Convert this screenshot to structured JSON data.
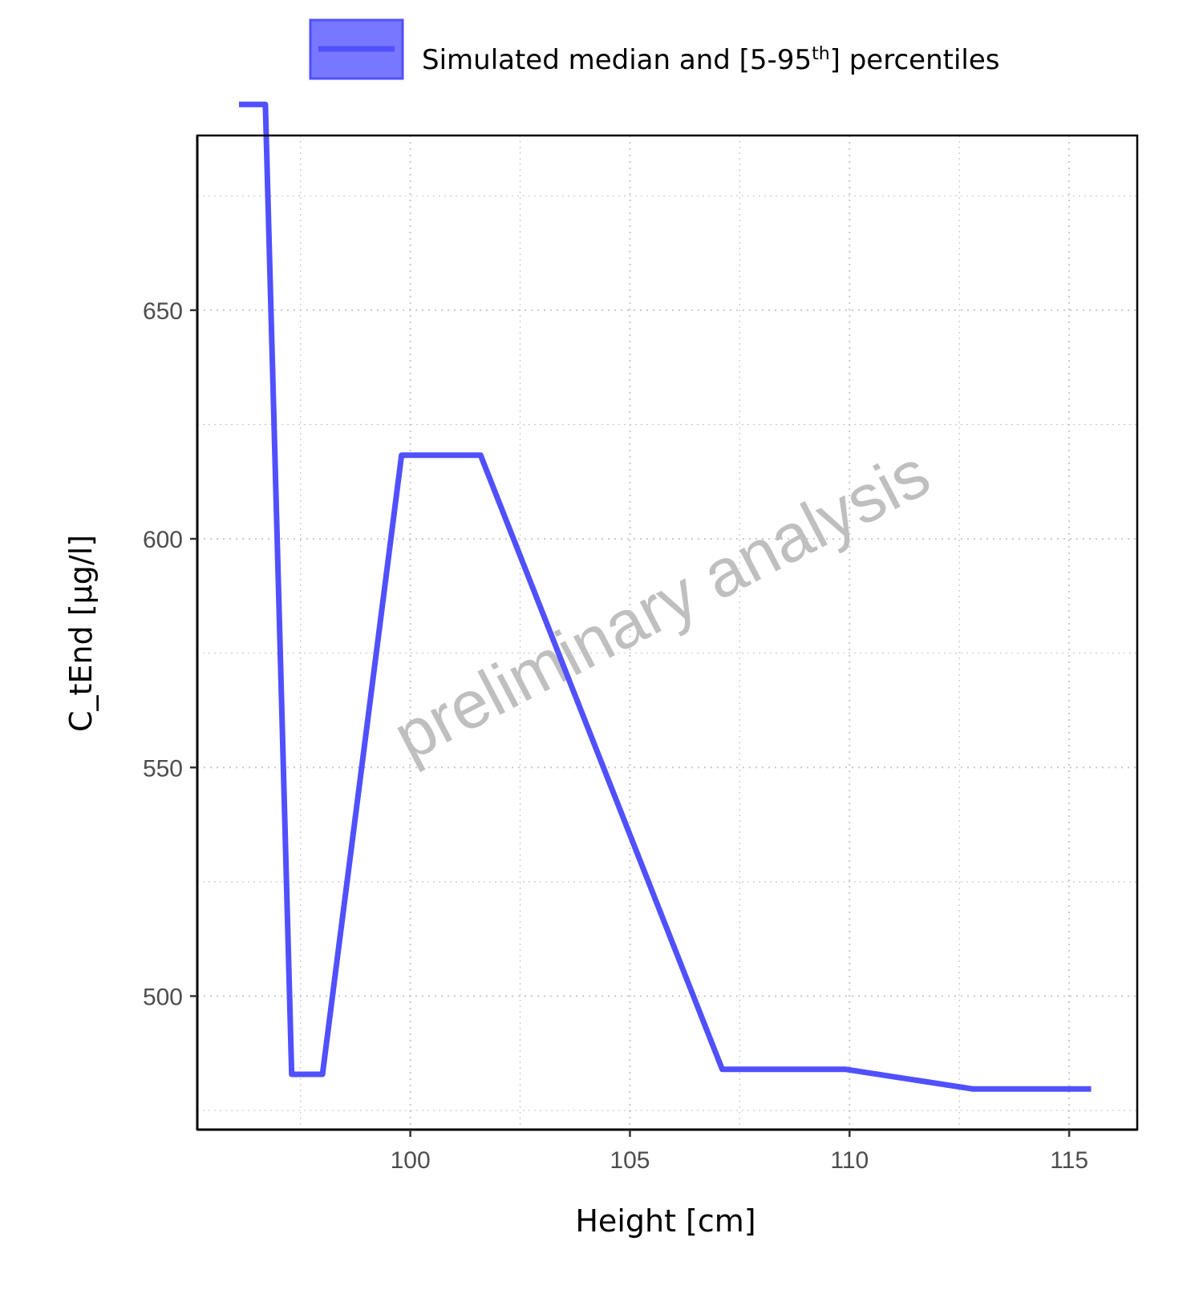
{
  "chart_data": {
    "type": "line",
    "xlabel": "Height [cm]",
    "ylabel": "C_tEnd [µg/l]",
    "xlim": [
      95.15,
      116.55
    ],
    "ylim": [
      470.8,
      688.2
    ],
    "xticks": [
      100,
      105,
      110,
      115
    ],
    "yticks": [
      500,
      550,
      600,
      650
    ],
    "grid": true,
    "legend_position": "top",
    "legend": {
      "label_main": "Simulated median and [5-95",
      "label_sup": "th",
      "label_end": "] percentiles"
    },
    "watermark": "preliminary analysis",
    "colors": {
      "line": "#5050FF",
      "legend_fill": "#7777FF",
      "grid": "#c8c8c8"
    },
    "series": [
      {
        "x": [
          96.1,
          96.7,
          97.3,
          98.0,
          99.8,
          101.6,
          107.1,
          109.9,
          112.8,
          115.5
        ],
        "y": [
          695,
          695,
          482.9,
          482.9,
          618.3,
          618.3,
          484.0,
          484.0,
          479.7,
          479.7
        ]
      }
    ]
  }
}
